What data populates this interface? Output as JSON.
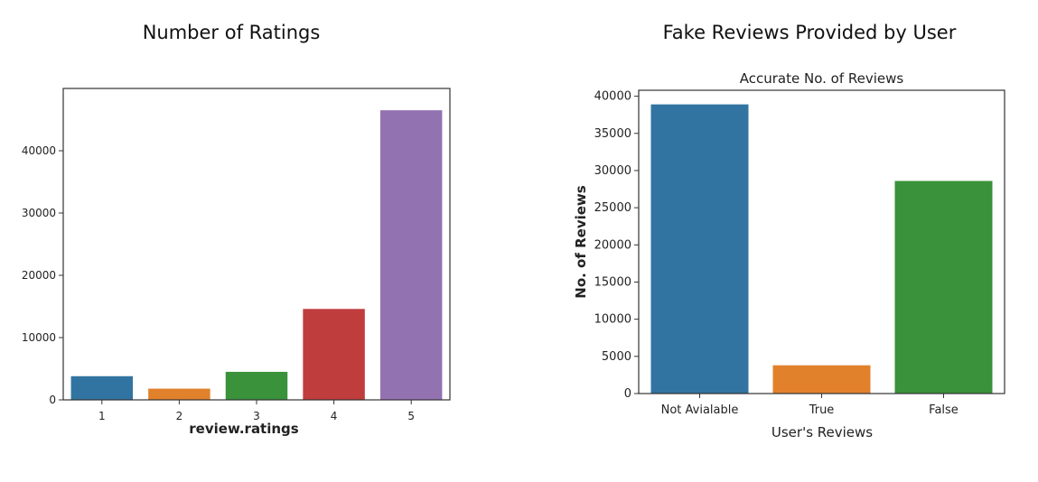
{
  "headings": {
    "left": "Number of Ratings",
    "right": "Fake Reviews Provided by User"
  },
  "chart_data": [
    {
      "type": "bar",
      "title": "",
      "xlabel": "review.ratings",
      "ylabel": "",
      "categories": [
        "1",
        "2",
        "3",
        "4",
        "5"
      ],
      "values": [
        3800,
        1800,
        4500,
        14600,
        46500
      ],
      "colors": [
        "#3274a1",
        "#e1812c",
        "#3a923a",
        "#c03d3e",
        "#9372b2"
      ],
      "ylim": [
        0,
        50000
      ],
      "yticks": [
        0,
        10000,
        20000,
        30000,
        40000
      ],
      "grid": false
    },
    {
      "type": "bar",
      "title": "Accurate No. of Reviews",
      "xlabel": "User's Reviews",
      "ylabel": "No. of Reviews",
      "categories": [
        "Not Avialable",
        "True",
        "False"
      ],
      "values": [
        38900,
        3800,
        28600
      ],
      "colors": [
        "#3274a1",
        "#e1812c",
        "#3a923a"
      ],
      "ylim": [
        0,
        40800
      ],
      "yticks": [
        0,
        5000,
        10000,
        15000,
        20000,
        25000,
        30000,
        35000,
        40000
      ],
      "grid": false
    }
  ]
}
